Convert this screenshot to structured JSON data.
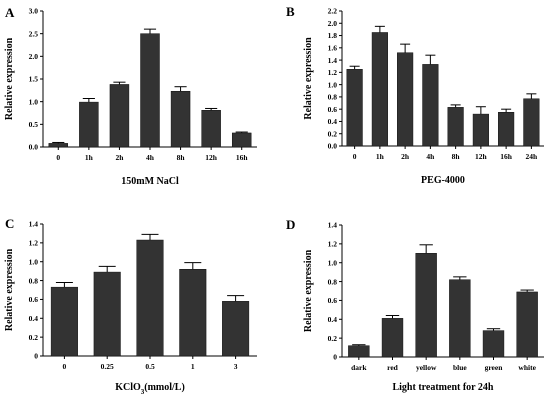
{
  "chart_data": [
    {
      "panel": "A",
      "type": "bar",
      "xlabel": "150mM NaCl",
      "ylabel": "Relative expression",
      "ylim": [
        0,
        3.0
      ],
      "yticks": [
        "0.0",
        "0.5",
        "1.0",
        "1.5",
        "2.0",
        "2.5",
        "3.0"
      ],
      "categories": [
        "0",
        "1h",
        "2h",
        "4h",
        "8h",
        "12h",
        "16h"
      ],
      "values": [
        0.08,
        0.99,
        1.38,
        2.5,
        1.23,
        0.81,
        0.31
      ],
      "errors": [
        0.02,
        0.08,
        0.05,
        0.1,
        0.1,
        0.04,
        0.02
      ]
    },
    {
      "panel": "B",
      "type": "bar",
      "xlabel": "PEG-4000",
      "ylabel": "Relative expression",
      "ylim": [
        0,
        2.2
      ],
      "yticks": [
        "0.0",
        "0.2",
        "0.4",
        "0.6",
        "0.8",
        "1.0",
        "1.2",
        "1.4",
        "1.6",
        "1.8",
        "2.0",
        "2.2"
      ],
      "categories": [
        "0",
        "1h",
        "2h",
        "4h",
        "8h",
        "12h",
        "16h",
        "24h"
      ],
      "values": [
        1.25,
        1.85,
        1.52,
        1.33,
        0.63,
        0.52,
        0.55,
        0.77
      ],
      "errors": [
        0.05,
        0.1,
        0.14,
        0.15,
        0.04,
        0.12,
        0.05,
        0.08
      ]
    },
    {
      "panel": "C",
      "type": "bar",
      "xlabel": "KClO3(mmol/L)",
      "ylabel": "Relative expression",
      "ylim": [
        0,
        1.4
      ],
      "yticks": [
        "0",
        "0.2",
        "0.4",
        "0.6",
        "0.8",
        "1.0",
        "1.2",
        "1.4"
      ],
      "categories": [
        "0",
        "0.25",
        "0.5",
        "1",
        "3"
      ],
      "values": [
        0.73,
        0.89,
        1.23,
        0.92,
        0.58
      ],
      "errors": [
        0.05,
        0.06,
        0.06,
        0.07,
        0.06
      ]
    },
    {
      "panel": "D",
      "type": "bar",
      "xlabel": "Light treatment for 24h",
      "ylabel": "Relative expression",
      "ylim": [
        0,
        1.4
      ],
      "yticks": [
        "0",
        "0.2",
        "0.4",
        "0.6",
        "0.8",
        "1.0",
        "1.2",
        "1.4"
      ],
      "categories": [
        "dark",
        "red",
        "yellow",
        "blue",
        "green",
        "white"
      ],
      "values": [
        0.12,
        0.41,
        1.1,
        0.82,
        0.28,
        0.69
      ],
      "errors": [
        0.01,
        0.03,
        0.09,
        0.03,
        0.02,
        0.02
      ]
    }
  ]
}
